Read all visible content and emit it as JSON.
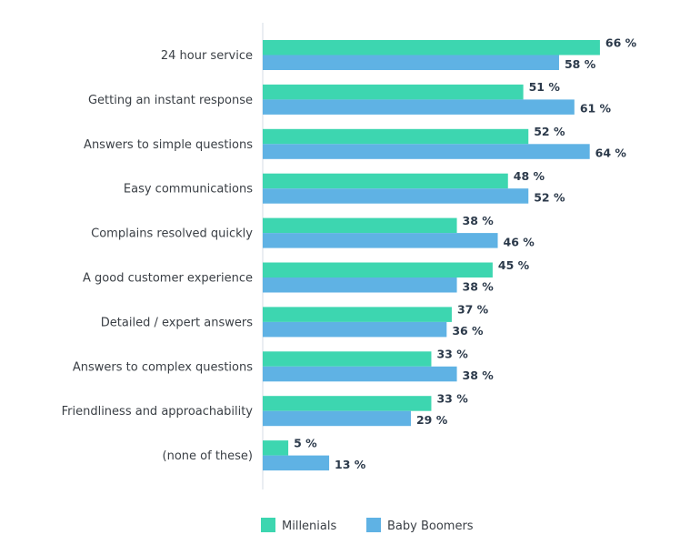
{
  "chart_data": {
    "type": "bar",
    "orientation": "horizontal",
    "categories": [
      "24 hour service",
      "Getting an instant response",
      "Answers to simple questions",
      "Easy communications",
      "Complains resolved quickly",
      "A good customer experience",
      "Detailed / expert answers",
      "Answers to complex questions",
      "Friendliness and approachability",
      "(none of these)"
    ],
    "series": [
      {
        "name": "Millenials",
        "color": "#3dd6b0",
        "values": [
          66,
          51,
          52,
          48,
          38,
          45,
          37,
          33,
          33,
          5
        ]
      },
      {
        "name": "Baby Boomers",
        "color": "#5fb2e4",
        "values": [
          58,
          61,
          64,
          52,
          46,
          38,
          36,
          38,
          29,
          13
        ]
      }
    ],
    "value_suffix": " %",
    "xlim": [
      0,
      100
    ],
    "grid": false,
    "legend_placement": "bottom",
    "title": "",
    "xlabel": "",
    "ylabel": ""
  }
}
